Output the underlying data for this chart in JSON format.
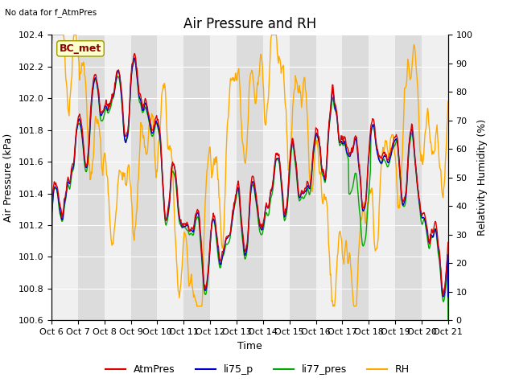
{
  "title": "Air Pressure and RH",
  "top_left_text": "No data for f_AtmPres",
  "bc_met_label": "BC_met",
  "xlabel": "Time",
  "ylabel_left": "Air Pressure (kPa)",
  "ylabel_right": "Relativity Humidity (%)",
  "ylim_left": [
    100.6,
    102.4
  ],
  "ylim_right": [
    0,
    100
  ],
  "line_colors": {
    "AtmPres": "#dd0000",
    "li75_p": "#0000cc",
    "li77_pres": "#00aa00",
    "RH": "#ffaa00"
  },
  "line_widths": {
    "AtmPres": 1.0,
    "li75_p": 1.0,
    "li77_pres": 1.0,
    "RH": 1.0
  },
  "background_color": "#ffffff",
  "plot_bg_light": "#f0f0f0",
  "plot_bg_dark": "#dcdcdc",
  "grid_color": "#ffffff",
  "x_tick_labels": [
    "Oct 6",
    "Oct 7",
    "Oct 8",
    "Oct 9",
    "Oct 10",
    "Oct 11",
    "Oct 12",
    "Oct 13",
    "Oct 14",
    "Oct 15",
    "Oct 16",
    "Oct 17",
    "Oct 18",
    "Oct 19",
    "Oct 20",
    "Oct 21"
  ],
  "x_ticks": [
    0,
    24,
    48,
    72,
    96,
    120,
    144,
    168,
    192,
    216,
    240,
    264,
    288,
    312,
    336,
    360
  ],
  "n_points": 721,
  "title_fontsize": 12,
  "axis_label_fontsize": 9,
  "tick_fontsize": 8,
  "legend_fontsize": 9
}
